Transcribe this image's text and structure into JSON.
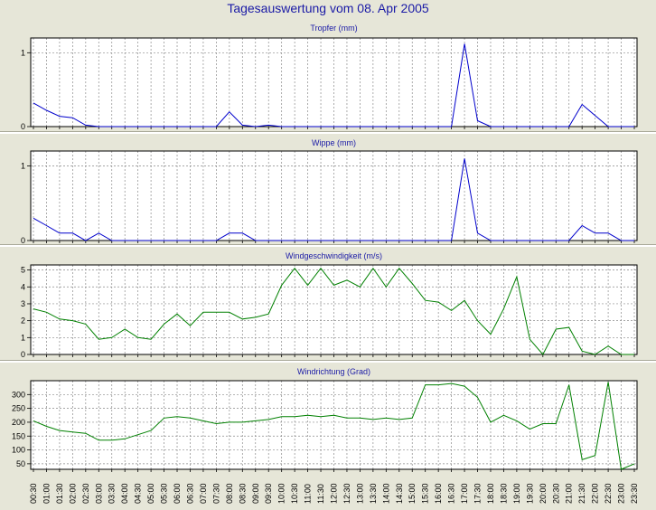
{
  "title": "Tagesauswertung vom 08. Apr 2005",
  "time_labels": [
    "00:30",
    "01:00",
    "01:30",
    "02:00",
    "02:30",
    "03:00",
    "03:30",
    "04:00",
    "04:30",
    "05:00",
    "05:30",
    "06:00",
    "06:30",
    "07:00",
    "07:30",
    "08:00",
    "08:30",
    "09:00",
    "09:30",
    "10:00",
    "10:30",
    "11:00",
    "11:30",
    "12:00",
    "12:30",
    "13:00",
    "13:30",
    "14:00",
    "14:30",
    "15:00",
    "15:30",
    "16:00",
    "16:30",
    "17:00",
    "17:30",
    "18:00",
    "18:30",
    "19:00",
    "19:30",
    "20:00",
    "20:30",
    "21:00",
    "21:30",
    "22:00",
    "22:30",
    "23:00",
    "23:30"
  ],
  "colors": {
    "background": "#e6e6d8",
    "plot_bg": "#ffffff",
    "grid": "#8a8a8a",
    "title": "#1a1aa6",
    "blue": "#0000cc",
    "green": "#008000"
  },
  "chart_data": [
    {
      "type": "line",
      "title": "Tropfer (mm)",
      "ylim": [
        0,
        1.2
      ],
      "yticks": [
        0,
        1
      ],
      "grid": true,
      "series": [
        {
          "color": "blue",
          "values": [
            0.32,
            0.22,
            0.14,
            0.12,
            0.02,
            0,
            0,
            0,
            0,
            0,
            0,
            0,
            0,
            0,
            0,
            0.2,
            0.02,
            0,
            0.02,
            0,
            0,
            0,
            0,
            0,
            0,
            0,
            0,
            0,
            0,
            0,
            0,
            0,
            0,
            1.12,
            0.08,
            0,
            0,
            0,
            0,
            0,
            0,
            0,
            0.3,
            0.15,
            0,
            0,
            0
          ]
        }
      ]
    },
    {
      "type": "line",
      "title": "Wippe (mm)",
      "ylim": [
        0,
        1.2
      ],
      "yticks": [
        0,
        1
      ],
      "grid": true,
      "series": [
        {
          "color": "blue",
          "values": [
            0.3,
            0.2,
            0.1,
            0.1,
            0,
            0.1,
            0,
            0,
            0,
            0,
            0,
            0,
            0,
            0,
            0,
            0.1,
            0.1,
            0,
            0,
            0,
            0,
            0,
            0,
            0,
            0,
            0,
            0,
            0,
            0,
            0,
            0,
            0,
            0,
            1.1,
            0.1,
            0,
            0,
            0,
            0,
            0,
            0,
            0,
            0.2,
            0.1,
            0.1,
            0,
            0
          ]
        }
      ]
    },
    {
      "type": "line",
      "title": "Windgeschwindigkeit (m/s)",
      "ylim": [
        0,
        5.3
      ],
      "yticks": [
        0,
        1,
        2,
        3,
        4,
        5
      ],
      "grid": true,
      "series": [
        {
          "color": "green",
          "values": [
            2.7,
            2.5,
            2.1,
            2.0,
            1.8,
            0.9,
            1.0,
            1.5,
            1.0,
            0.9,
            1.8,
            2.4,
            1.7,
            2.5,
            2.5,
            2.5,
            2.1,
            2.2,
            2.4,
            4.1,
            5.1,
            4.1,
            5.1,
            4.1,
            4.4,
            4.0,
            5.1,
            4.0,
            5.1,
            4.2,
            3.2,
            3.1,
            2.6,
            3.2,
            2.0,
            1.2,
            2.7,
            4.6,
            0.9,
            0.0,
            1.5,
            1.6,
            0.2,
            0.0,
            0.5,
            0.0,
            0.0
          ]
        }
      ]
    },
    {
      "type": "line",
      "title": "Windrichtung (Grad)",
      "ylim": [
        30,
        350
      ],
      "yticks": [
        50,
        100,
        150,
        200,
        250,
        300
      ],
      "grid": true,
      "series": [
        {
          "color": "green",
          "values": [
            205,
            185,
            170,
            165,
            160,
            135,
            135,
            140,
            155,
            170,
            215,
            220,
            215,
            205,
            195,
            200,
            200,
            205,
            210,
            220,
            220,
            225,
            220,
            225,
            215,
            215,
            210,
            215,
            210,
            215,
            335,
            335,
            340,
            330,
            290,
            200,
            225,
            205,
            175,
            195,
            195,
            335,
            65,
            80,
            345,
            20,
            50
          ]
        }
      ]
    }
  ]
}
